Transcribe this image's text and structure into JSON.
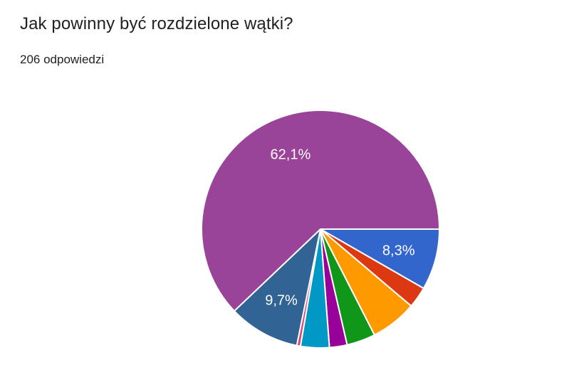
{
  "header": {
    "title": "Jak powinny być rozdzielone wątki?",
    "subtitle": "206 odpowiedzi",
    "title_color": "#202124"
  },
  "chart_data": {
    "type": "pie",
    "title": "Jak powinny być rozdzielone wątki?",
    "responses_total": 206,
    "legend": "none",
    "start_angle_deg": 0,
    "direction": "clockwise",
    "slice_label_color": "#ffffff",
    "slice_border_color": "#ffffff",
    "slices": [
      {
        "percent": 8.3,
        "label": "8,3%",
        "color": "#3366CC"
      },
      {
        "percent": 2.9,
        "label": "",
        "color": "#DC3912"
      },
      {
        "percent": 6.3,
        "label": "",
        "color": "#FF9900"
      },
      {
        "percent": 3.9,
        "label": "",
        "color": "#109618"
      },
      {
        "percent": 2.4,
        "label": "",
        "color": "#990099"
      },
      {
        "percent": 3.9,
        "label": "",
        "color": "#0099C6"
      },
      {
        "percent": 0.5,
        "label": "",
        "color": "#DD4477"
      },
      {
        "percent": 9.7,
        "label": "9,7%",
        "color": "#316395"
      },
      {
        "percent": 62.1,
        "label": "62,1%",
        "color": "#994499"
      }
    ]
  }
}
